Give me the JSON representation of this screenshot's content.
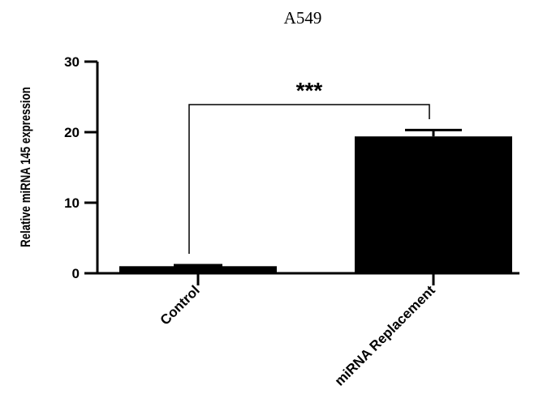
{
  "chart_data": {
    "type": "bar",
    "title": "A549",
    "ylabel": "Relative miRNA 145 expression",
    "xlabel": "",
    "categories": [
      "Control",
      "miRNA Replacement"
    ],
    "values": [
      1.0,
      19.4
    ],
    "errors": [
      0.15,
      0.9
    ],
    "ylim": [
      0,
      30
    ],
    "yticks": [
      0,
      10,
      20,
      30
    ],
    "bar_color": "#000000",
    "significance": {
      "label": "***",
      "between": [
        0,
        1
      ]
    },
    "grid": false,
    "legend": "none"
  }
}
